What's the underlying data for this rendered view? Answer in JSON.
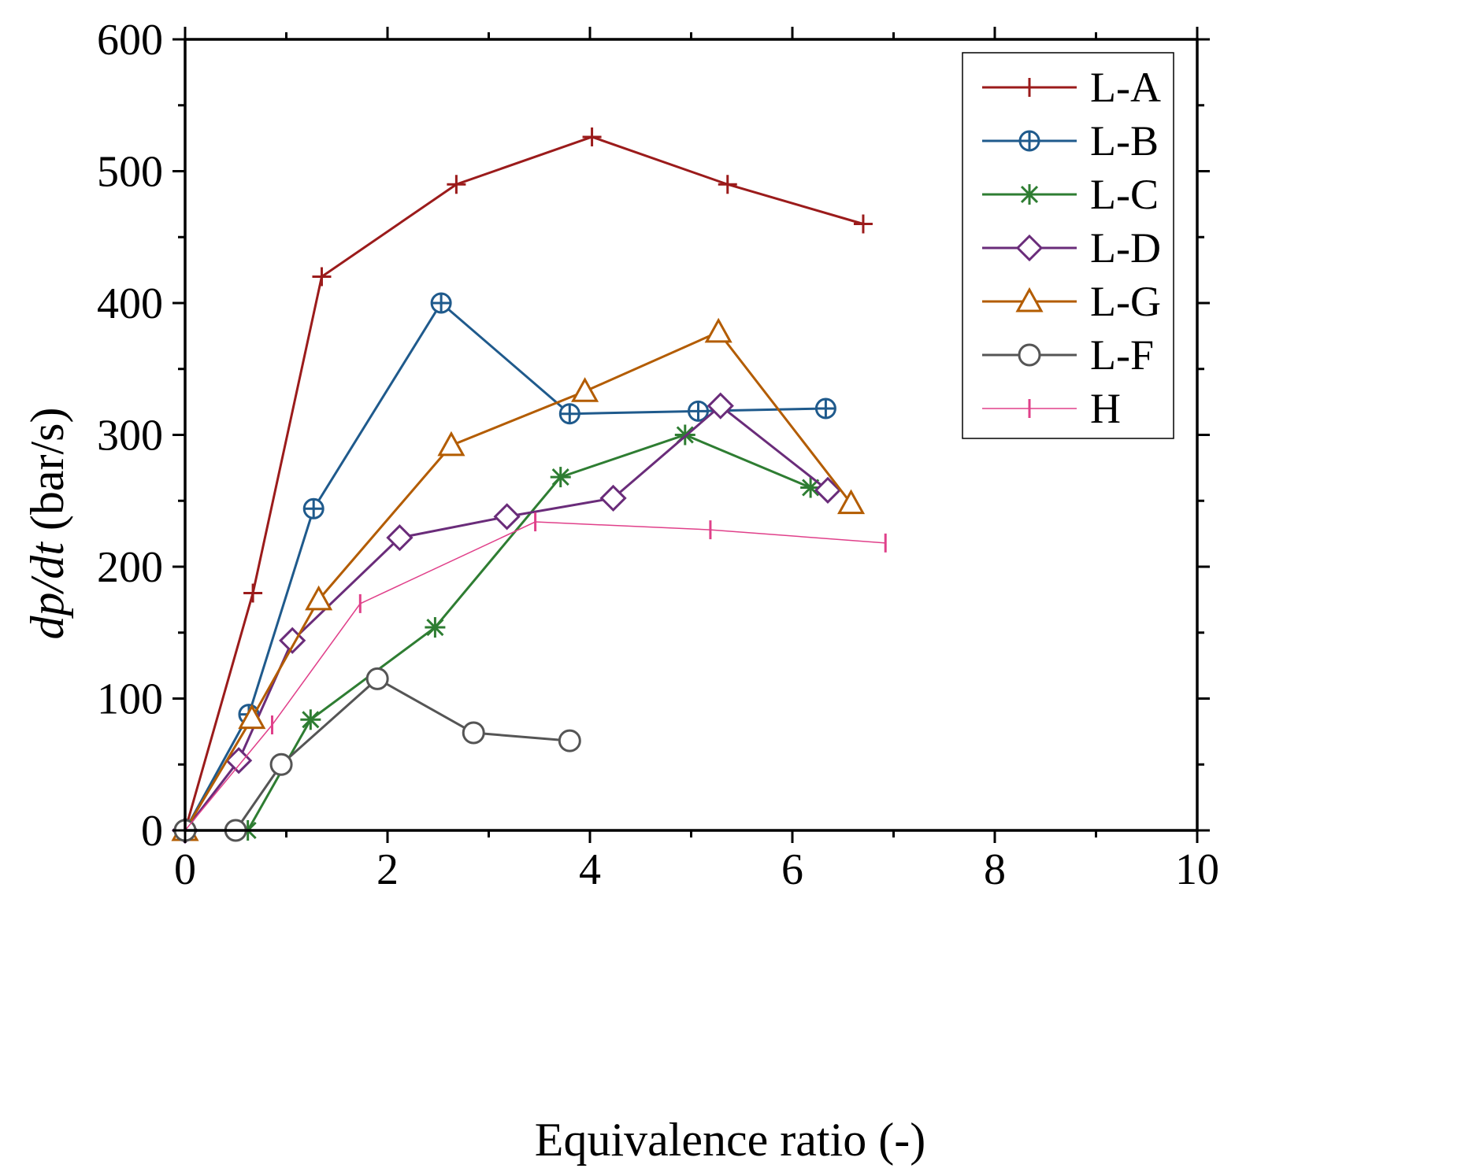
{
  "chart_data": {
    "type": "line",
    "xlabel": "Equivalence ratio (-)",
    "ylabel_italic": "dp/dt",
    "ylabel_unit": " (bar/s)",
    "xlim": [
      0,
      10
    ],
    "ylim": [
      0,
      600
    ],
    "xticks": [
      0,
      2,
      4,
      6,
      8,
      10
    ],
    "yticks": [
      0,
      100,
      200,
      300,
      400,
      500,
      600
    ],
    "x_minor_step": 1,
    "y_minor_step": 50,
    "grid": false,
    "legend_position": "top-right",
    "series": [
      {
        "name": "L-A",
        "color": "#9b1b1b",
        "marker": "plus",
        "width": 3,
        "x": [
          0,
          0.67,
          1.35,
          2.68,
          4.02,
          5.36,
          6.7
        ],
        "y": [
          0,
          180,
          420,
          490,
          526,
          490,
          460
        ]
      },
      {
        "name": "L-B",
        "color": "#1f5a8c",
        "marker": "circle-plus",
        "width": 3,
        "x": [
          0,
          0.63,
          1.27,
          2.53,
          3.8,
          5.07,
          6.33
        ],
        "y": [
          0,
          88,
          244,
          400,
          316,
          318,
          320
        ]
      },
      {
        "name": "L-C",
        "color": "#2e7d32",
        "marker": "asterisk",
        "width": 3,
        "x": [
          0,
          0.62,
          1.24,
          2.47,
          3.71,
          4.94,
          6.18
        ],
        "y": [
          0,
          0,
          84,
          154,
          268,
          300,
          260
        ]
      },
      {
        "name": "L-D",
        "color": "#6a2c7a",
        "marker": "diamond",
        "width": 3,
        "x": [
          0,
          0.53,
          1.06,
          2.12,
          3.18,
          4.23,
          5.29,
          6.35
        ],
        "y": [
          0,
          53,
          144,
          222,
          238,
          252,
          322,
          258
        ]
      },
      {
        "name": "L-G",
        "color": "#b35c00",
        "marker": "triangle",
        "width": 3,
        "x": [
          0,
          0.66,
          1.32,
          2.63,
          3.95,
          5.27,
          6.58
        ],
        "y": [
          0,
          85,
          175,
          292,
          333,
          378,
          248
        ]
      },
      {
        "name": "L-F",
        "color": "#555555",
        "marker": "circle",
        "width": 3,
        "x": [
          0,
          0.5,
          0.95,
          1.9,
          2.85,
          3.8
        ],
        "y": [
          0,
          0,
          50,
          115,
          74,
          68
        ]
      },
      {
        "name": "H",
        "color": "#e0408a",
        "marker": "vbar",
        "width": 1.5,
        "x": [
          0,
          0.86,
          1.73,
          3.46,
          5.19,
          6.92
        ],
        "y": [
          0,
          80,
          172,
          234,
          228,
          218
        ]
      }
    ]
  }
}
